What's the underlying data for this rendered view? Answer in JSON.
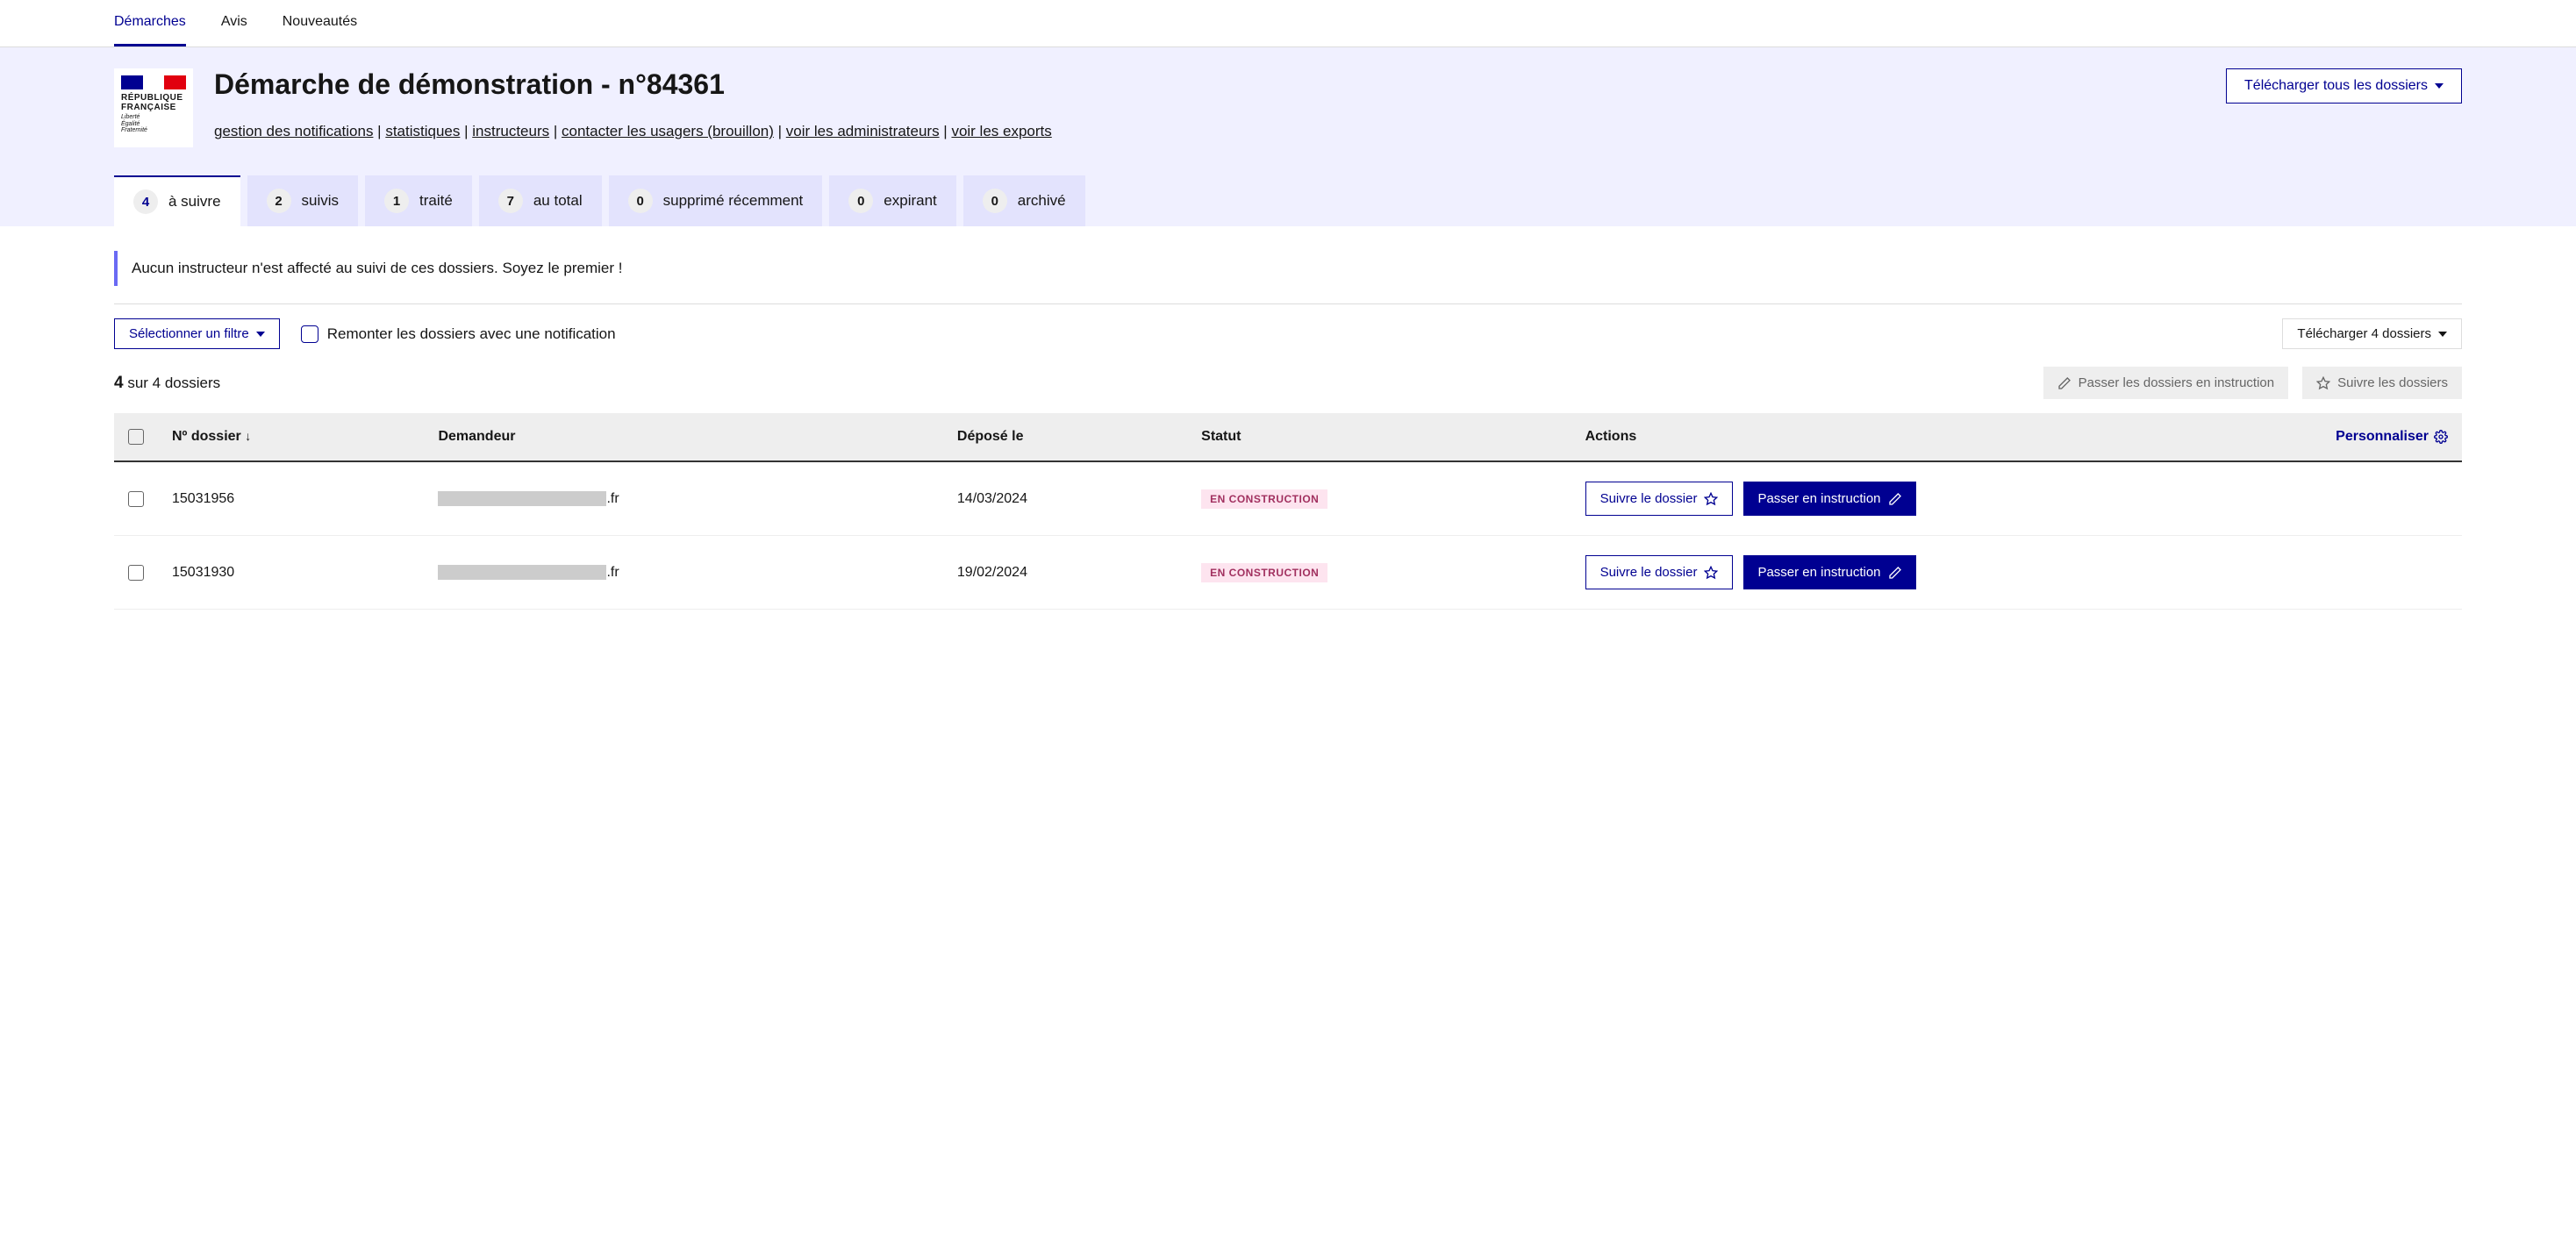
{
  "nav": {
    "items": [
      {
        "label": "Démarches",
        "active": true
      },
      {
        "label": "Avis",
        "active": false
      },
      {
        "label": "Nouveautés",
        "active": false
      }
    ]
  },
  "logo": {
    "main": "RÉPUBLIQUE\nFRANÇAISE",
    "sub": "Liberté\nÉgalité\nFraternité"
  },
  "header": {
    "title": "Démarche de démonstration - n°84361",
    "download_all": "Télécharger tous les dossiers",
    "links": [
      "gestion des notifications",
      "statistiques",
      "instructeurs",
      "contacter les usagers (brouillon)",
      "voir les administrateurs",
      "voir les exports"
    ]
  },
  "tabs": [
    {
      "count": "4",
      "label": "à suivre",
      "active": true
    },
    {
      "count": "2",
      "label": "suivis",
      "active": false
    },
    {
      "count": "1",
      "label": "traité",
      "active": false
    },
    {
      "count": "7",
      "label": "au total",
      "active": false
    },
    {
      "count": "0",
      "label": "supprimé récemment",
      "active": false
    },
    {
      "count": "0",
      "label": "expirant",
      "active": false
    },
    {
      "count": "0",
      "label": "archivé",
      "active": false
    }
  ],
  "banner": "Aucun instructeur n'est affecté au suivi de ces dossiers. Soyez le premier !",
  "filters": {
    "select_filter": "Sélectionner un filtre",
    "notif_checkbox": "Remonter les dossiers avec une notification",
    "download_count": "Télécharger 4 dossiers"
  },
  "count": {
    "bold": "4",
    "rest": "sur 4 dossiers"
  },
  "actions": {
    "pass_instruction": "Passer les dossiers en instruction",
    "follow": "Suivre les dossiers"
  },
  "table": {
    "columns": {
      "num": "Nº dossier",
      "demandeur": "Demandeur",
      "depose": "Déposé le",
      "statut": "Statut",
      "actions": "Actions",
      "personalize": "Personnaliser"
    },
    "rows": [
      {
        "num": "15031956",
        "demandeur_redacted": "xxxxxxxxxxxxxxxxxxxxxxxx",
        "demandeur_suffix": ".fr",
        "depose": "14/03/2024",
        "statut": "EN CONSTRUCTION"
      },
      {
        "num": "15031930",
        "demandeur_redacted": "xxxxxxxxxxxxxxxxxxxxxxxx",
        "demandeur_suffix": ".fr",
        "depose": "19/02/2024",
        "statut": "EN CONSTRUCTION"
      }
    ],
    "row_actions": {
      "follow": "Suivre le dossier",
      "pass": "Passer en instruction"
    }
  },
  "colors": {
    "primary": "#000091",
    "tab_bg": "#e3e3fd",
    "header_bg": "#f0f0ff",
    "badge_bg": "#fde4ef",
    "badge_text": "#a1305f",
    "chip_bg": "#eeeeee"
  }
}
